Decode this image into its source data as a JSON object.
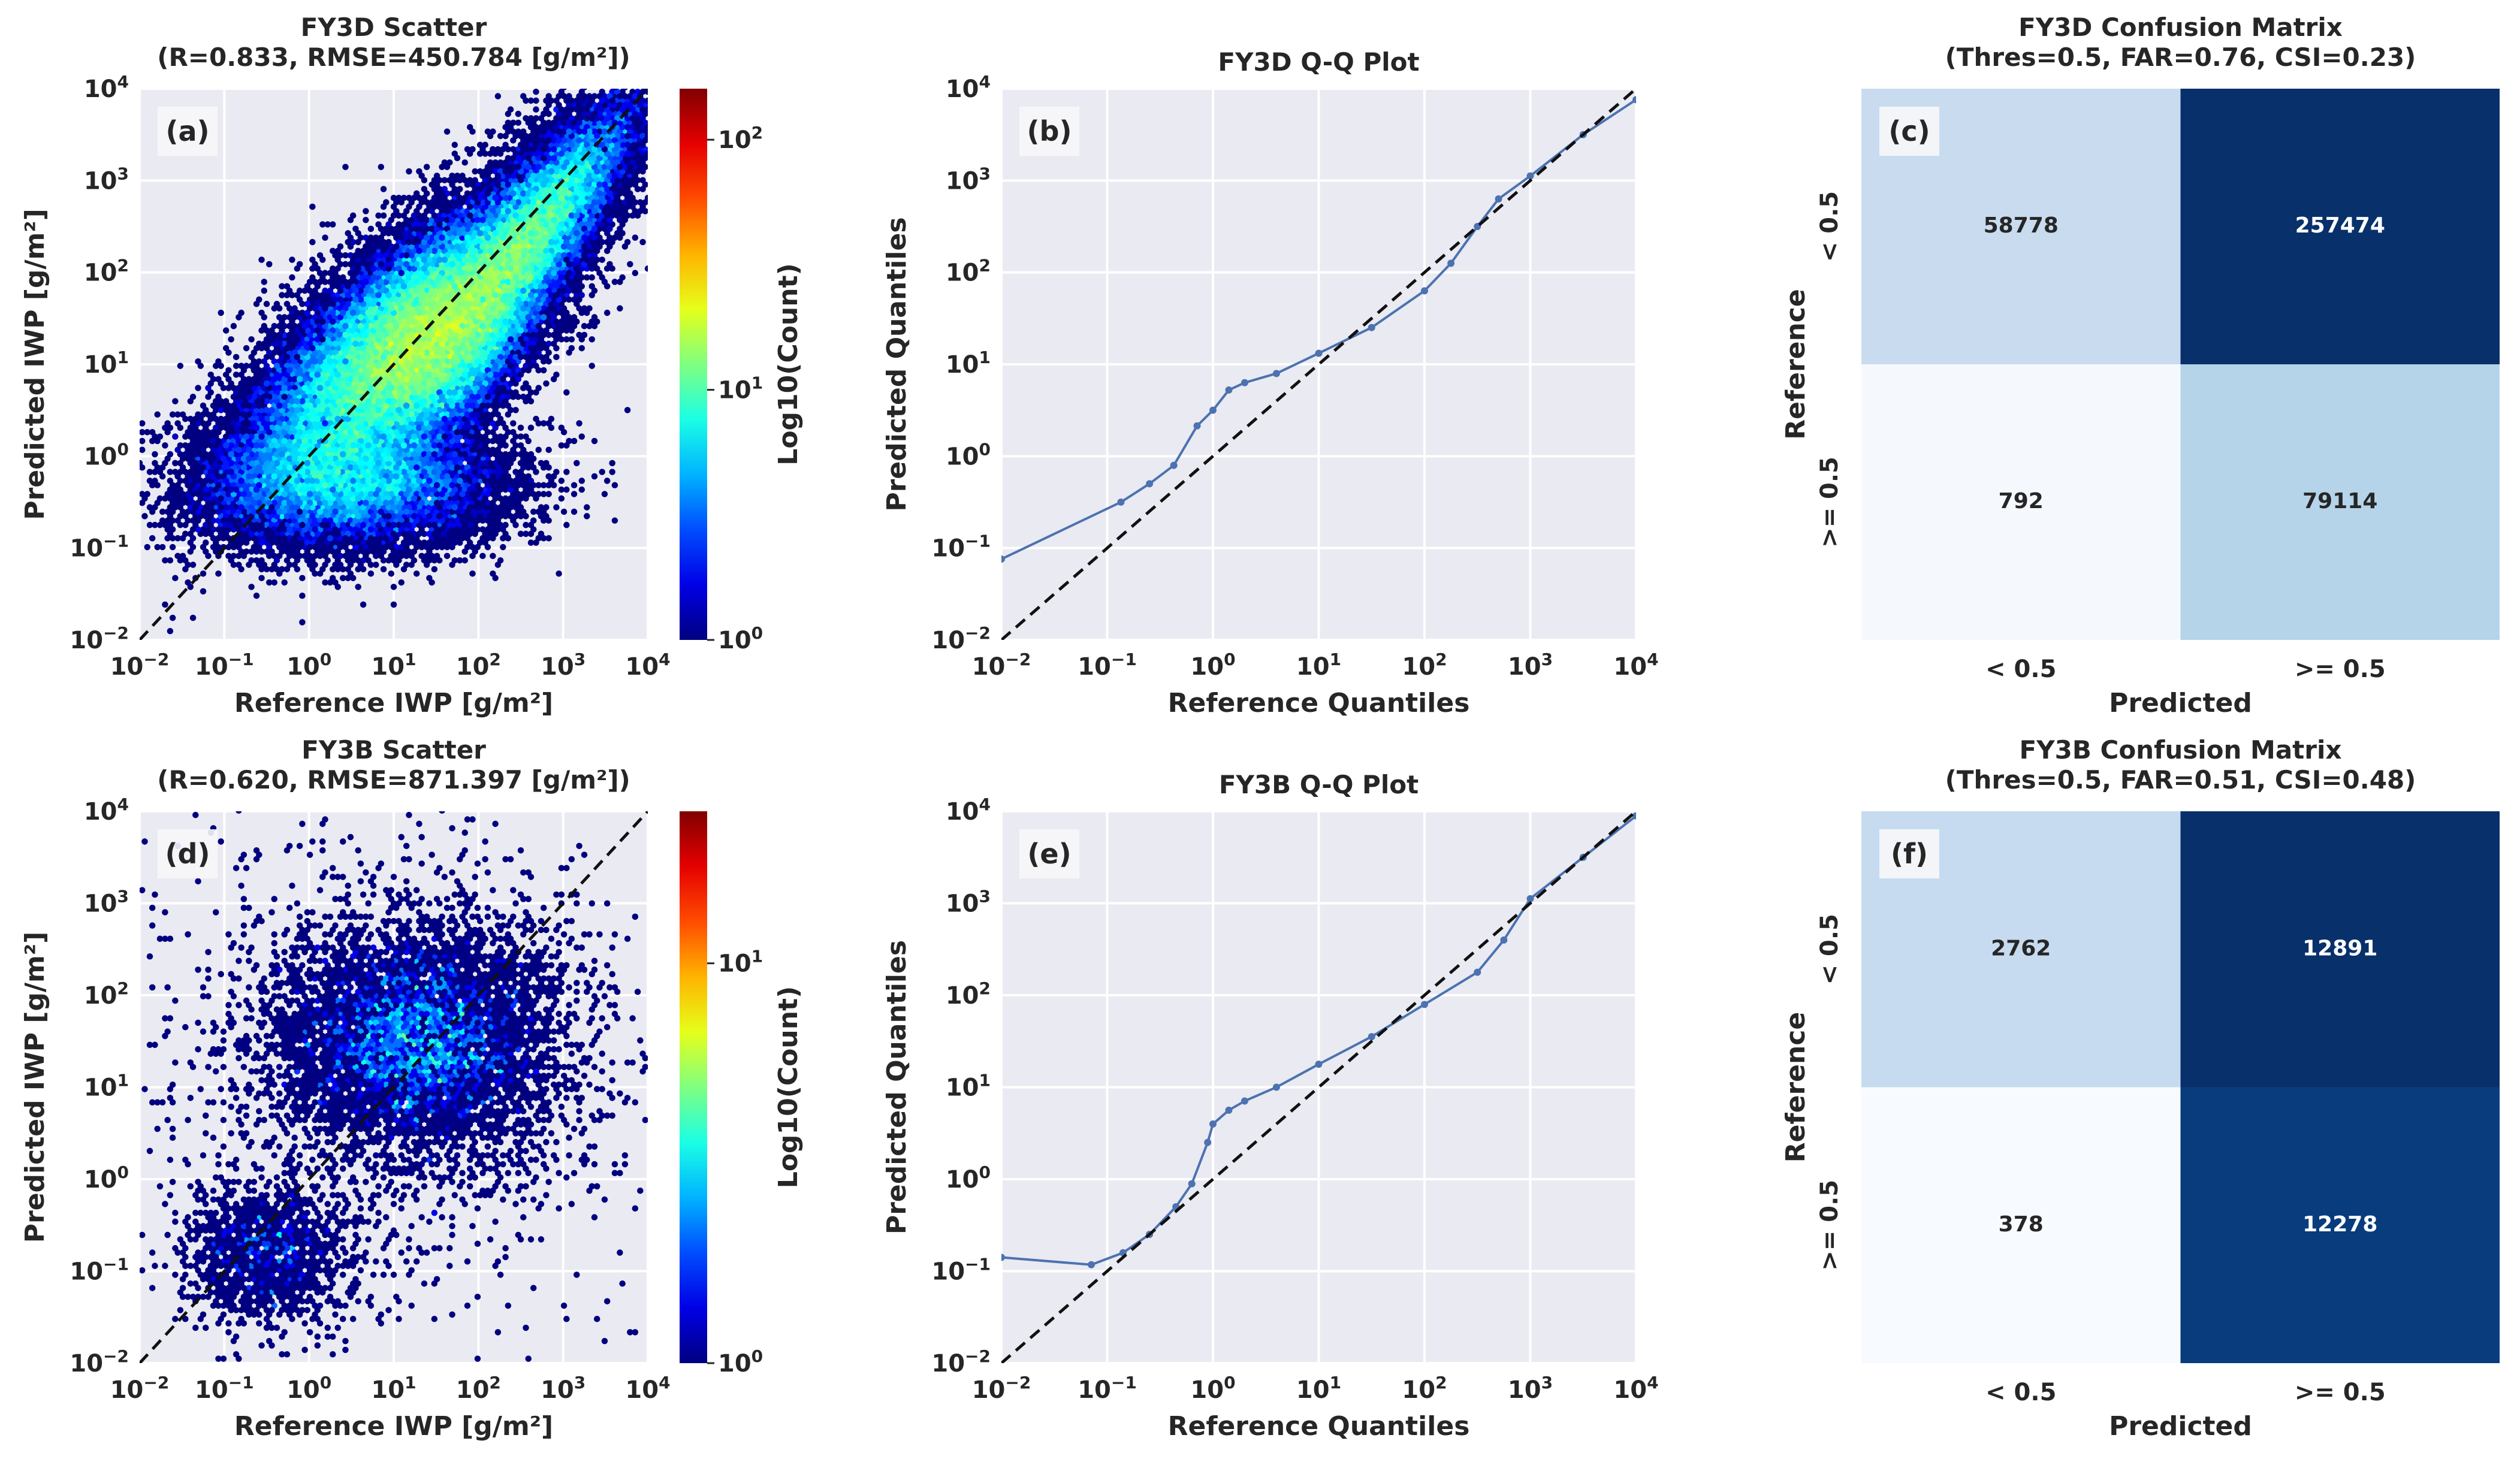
{
  "chart_data": [
    {
      "id": "a",
      "type": "scatter",
      "panel_label": "(a)",
      "title": [
        "FY3D Scatter",
        "(R=0.833, RMSE=450.784 [g/m²])"
      ],
      "xlabel": "Reference IWP [g/m²]",
      "ylabel": "Predicted IWP [g/m²]",
      "xscale": "log",
      "yscale": "log",
      "xlim": [
        0.01,
        10000
      ],
      "ylim": [
        0.01,
        10000
      ],
      "x_tick_exponents": [
        -2,
        -1,
        0,
        1,
        2,
        3,
        4
      ],
      "y_tick_exponents": [
        -2,
        -1,
        0,
        1,
        2,
        3,
        4
      ],
      "R": 0.833,
      "RMSE": 450.784,
      "reference_line": "1:1 dashed",
      "colorbar": {
        "label": "Log10(Count)",
        "scale": "log",
        "range": [
          1,
          160
        ],
        "tick_exponents": [
          0,
          1,
          2
        ],
        "cmap": "jet"
      }
    },
    {
      "id": "b",
      "type": "line",
      "panel_label": "(b)",
      "title": [
        "FY3D Q-Q Plot"
      ],
      "xlabel": "Reference Quantiles",
      "ylabel": "Predicted Quantiles",
      "xscale": "log",
      "yscale": "log",
      "xlim": [
        0.01,
        10000
      ],
      "ylim": [
        0.01,
        10000
      ],
      "x_tick_exponents": [
        -2,
        -1,
        0,
        1,
        2,
        3,
        4
      ],
      "y_tick_exponents": [
        -2,
        -1,
        0,
        1,
        2,
        3,
        4
      ],
      "series_log10": {
        "x": [
          -2,
          -0.87,
          -0.6,
          -0.37,
          -0.15,
          0,
          0.15,
          0.3,
          0.6,
          1,
          1.5,
          2,
          2.25,
          2.5,
          2.7,
          3,
          3.5,
          4
        ],
        "y": [
          -1.12,
          -0.5,
          -0.3,
          -0.1,
          0.33,
          0.5,
          0.72,
          0.8,
          0.9,
          1.12,
          1.4,
          1.8,
          2.1,
          2.5,
          2.8,
          3.05,
          3.5,
          3.88
        ]
      },
      "color": "#4c72b0"
    },
    {
      "id": "c",
      "type": "heatmap",
      "panel_label": "(c)",
      "title": [
        "FY3D Confusion Matrix",
        "(Thres=0.5, FAR=0.76, CSI=0.23)"
      ],
      "xlabel": "Predicted",
      "ylabel": "Reference",
      "categories": [
        "< 0.5",
        ">= 0.5"
      ],
      "matrix": [
        [
          58778,
          257474
        ],
        [
          792,
          79114
        ]
      ],
      "cell_colors": [
        [
          "#c9dcef",
          "#08306b"
        ],
        [
          "#f5f9fe",
          "#b5d4e9"
        ]
      ],
      "text_colors": [
        [
          "#262626",
          "#ffffff"
        ],
        [
          "#262626",
          "#262626"
        ]
      ]
    },
    {
      "id": "d",
      "type": "scatter",
      "panel_label": "(d)",
      "title": [
        "FY3B Scatter",
        "(R=0.620, RMSE=871.397 [g/m²])"
      ],
      "xlabel": "Reference IWP [g/m²]",
      "ylabel": "Predicted IWP [g/m²]",
      "xscale": "log",
      "yscale": "log",
      "xlim": [
        0.01,
        10000
      ],
      "ylim": [
        0.01,
        10000
      ],
      "x_tick_exponents": [
        -2,
        -1,
        0,
        1,
        2,
        3,
        4
      ],
      "y_tick_exponents": [
        -2,
        -1,
        0,
        1,
        2,
        3,
        4
      ],
      "R": 0.62,
      "RMSE": 871.397,
      "reference_line": "1:1 dashed",
      "colorbar": {
        "label": "Log10(Count)",
        "scale": "log",
        "range": [
          1,
          24
        ],
        "tick_exponents": [
          0,
          1
        ],
        "cmap": "jet"
      }
    },
    {
      "id": "e",
      "type": "line",
      "panel_label": "(e)",
      "title": [
        "FY3B Q-Q Plot"
      ],
      "xlabel": "Reference Quantiles",
      "ylabel": "Predicted Quantiles",
      "xscale": "log",
      "yscale": "log",
      "xlim": [
        0.01,
        10000
      ],
      "ylim": [
        0.01,
        10000
      ],
      "x_tick_exponents": [
        -2,
        -1,
        0,
        1,
        2,
        3,
        4
      ],
      "y_tick_exponents": [
        -2,
        -1,
        0,
        1,
        2,
        3,
        4
      ],
      "series_log10": {
        "x": [
          -2,
          -1.15,
          -0.85,
          -0.6,
          -0.35,
          -0.2,
          -0.05,
          0,
          0.15,
          0.3,
          0.6,
          1,
          1.5,
          2,
          2.5,
          2.75,
          3,
          3.5,
          4
        ],
        "y": [
          -0.85,
          -0.93,
          -0.8,
          -0.6,
          -0.3,
          -0.05,
          0.4,
          0.6,
          0.75,
          0.85,
          1.0,
          1.25,
          1.55,
          1.9,
          2.25,
          2.6,
          3.05,
          3.5,
          3.95
        ]
      },
      "color": "#4c72b0"
    },
    {
      "id": "f",
      "type": "heatmap",
      "panel_label": "(f)",
      "title": [
        "FY3B Confusion Matrix",
        "(Thres=0.5, FAR=0.51, CSI=0.48)"
      ],
      "xlabel": "Predicted",
      "ylabel": "Reference",
      "categories": [
        "< 0.5",
        ">= 0.5"
      ],
      "matrix": [
        [
          2762,
          12891
        ],
        [
          378,
          12278
        ]
      ],
      "cell_colors": [
        [
          "#c6dbef",
          "#08306b"
        ],
        [
          "#f7fbff",
          "#083c7d"
        ]
      ],
      "text_colors": [
        [
          "#262626",
          "#ffffff"
        ],
        [
          "#262626",
          "#ffffff"
        ]
      ]
    }
  ]
}
